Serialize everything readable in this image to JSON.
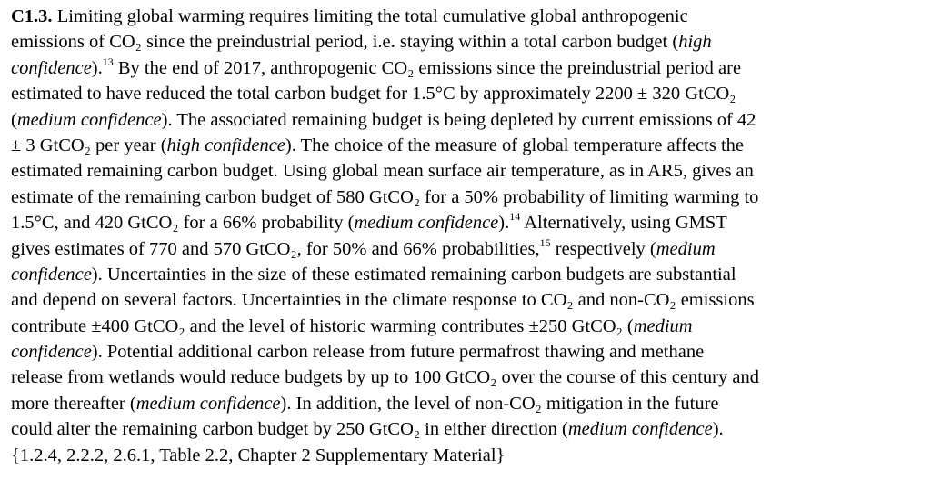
{
  "paragraph": {
    "id_label": "C1.3.",
    "lines": [
      [
        {
          "t": " Limiting global warming requires limiting the total cumulative global anthropogenic"
        }
      ],
      [
        {
          "t": "emissions of CO₂ since the preindustrial period, i.e. staying within a total carbon budget ("
        },
        {
          "t": "high",
          "s": "i"
        }
      ],
      [
        {
          "t": "confidence",
          "s": "i"
        },
        {
          "t": ")."
        },
        {
          "t": "13",
          "s": "sup"
        },
        {
          "t": " By the end of 2017, anthropogenic CO₂ emissions since the preindustrial period are"
        }
      ],
      [
        {
          "t": "estimated to have reduced the total carbon budget for 1.5°C by approximately 2200 ± 320 GtCO₂"
        }
      ],
      [
        {
          "t": "("
        },
        {
          "t": "medium confidence",
          "s": "i"
        },
        {
          "t": "). The associated remaining budget is being depleted by current emissions of 42"
        }
      ],
      [
        {
          "t": "± 3 GtCO₂ per year ("
        },
        {
          "t": "high confidence",
          "s": "i"
        },
        {
          "t": "). The choice of the measure of global temperature affects the"
        }
      ],
      [
        {
          "t": "estimated remaining carbon budget. Using global mean surface air temperature, as in AR5, gives an"
        }
      ],
      [
        {
          "t": "estimate of the remaining carbon budget of 580 GtCO₂ for a 50% probability of limiting warming to"
        }
      ],
      [
        {
          "t": "1.5°C, and 420 GtCO₂ for a 66% probability ("
        },
        {
          "t": "medium confidence",
          "s": "i"
        },
        {
          "t": ")."
        },
        {
          "t": "14",
          "s": "sup"
        },
        {
          "t": " Alternatively, using GMST"
        }
      ],
      [
        {
          "t": "gives estimates of 770 and 570 GtCO₂, for 50% and 66% probabilities,"
        },
        {
          "t": "15",
          "s": "sup"
        },
        {
          "t": " respectively ("
        },
        {
          "t": "medium",
          "s": "i"
        }
      ],
      [
        {
          "t": "confidence",
          "s": "i"
        },
        {
          "t": "). Uncertainties in the size of these estimated remaining carbon budgets are substantial"
        }
      ],
      [
        {
          "t": "and depend on several factors. Uncertainties in the climate response to CO₂ and non-CO₂ emissions"
        }
      ],
      [
        {
          "t": "contribute ±400 GtCO₂ and the level of historic warming contributes ±250 GtCO₂ ("
        },
        {
          "t": "medium",
          "s": "i"
        }
      ],
      [
        {
          "t": "confidence",
          "s": "i"
        },
        {
          "t": "). Potential additional carbon release from future permafrost thawing and methane"
        }
      ],
      [
        {
          "t": "release from wetlands would reduce budgets by up to 100 GtCO₂ over the course of this century and"
        }
      ],
      [
        {
          "t": "more thereafter ("
        },
        {
          "t": "medium confidence",
          "s": "i"
        },
        {
          "t": "). In addition, the level of non-CO₂ mitigation in the future"
        }
      ],
      [
        {
          "t": "could alter the remaining carbon budget by 250 GtCO₂ in either direction ("
        },
        {
          "t": "medium confidence",
          "s": "i"
        },
        {
          "t": ")."
        }
      ],
      [
        {
          "t": "{1.2.4, 2.2.2, 2.6.1, Table 2.2, Chapter 2 Supplementary Material}"
        }
      ]
    ]
  }
}
